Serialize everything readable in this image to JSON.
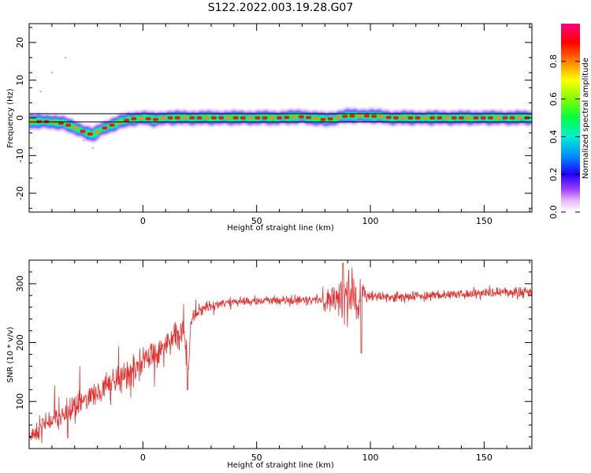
{
  "figure": {
    "title": "S122.2022.003.19.28.G07"
  },
  "chart_data": [
    {
      "type": "heatmap",
      "name": "spectrogram",
      "xlabel": "Height of straight line (km)",
      "ylabel": "Frequency (Hz)",
      "xlim": [
        -50,
        171
      ],
      "ylim": [
        -25,
        25
      ],
      "xticks": [
        0,
        50,
        100,
        150
      ],
      "yticks": [
        -20,
        -10,
        0,
        10,
        20
      ],
      "xtick_labels": [
        "0",
        "50",
        "100",
        "150"
      ],
      "ytick_labels": [
        "-20",
        "-10",
        "0",
        "10",
        "20"
      ],
      "colorbar": {
        "label": "Normalized spectral amplitude",
        "range": [
          0,
          1
        ],
        "ticks": [
          0.0,
          0.2,
          0.4,
          0.6,
          0.8
        ],
        "tick_labels": [
          "0.0",
          "0.2",
          "0.4",
          "0.6",
          "0.8"
        ]
      },
      "ridge_frequency": {
        "x": [
          -50,
          -40,
          -35,
          -30,
          -25,
          -22,
          -18,
          -12,
          -5,
          0,
          5,
          10,
          20,
          50,
          60,
          70,
          80,
          90,
          100,
          110,
          120,
          150,
          171
        ],
        "y": [
          -1,
          -1,
          -1.5,
          -2.5,
          -4,
          -4.5,
          -3,
          -1.5,
          -0.3,
          0,
          -0.5,
          0,
          0,
          0,
          0,
          0.3,
          -0.5,
          0.5,
          0.5,
          0,
          0,
          0,
          0
        ]
      }
    },
    {
      "type": "line",
      "name": "snr",
      "xlabel": "Height of straight line (km)",
      "ylabel": "SNR (10 * v/v)",
      "xlim": [
        -50,
        171
      ],
      "ylim": [
        20,
        340
      ],
      "xticks": [
        0,
        50,
        100,
        150
      ],
      "yticks": [
        100,
        200,
        300
      ],
      "xtick_labels": [
        "0",
        "50",
        "100",
        "150"
      ],
      "ytick_labels": [
        "100",
        "200",
        "300"
      ],
      "color": "#e53030",
      "trend": {
        "x": [
          -50,
          -45,
          -40,
          -35,
          -30,
          -25,
          -20,
          -15,
          -10,
          -5,
          0,
          5,
          10,
          15,
          18,
          19,
          20,
          21,
          22,
          25,
          30,
          35,
          40,
          50,
          60,
          70,
          80,
          85,
          90,
          95,
          100,
          110,
          120,
          130,
          140,
          150,
          160,
          171
        ],
        "y": [
          40,
          55,
          70,
          75,
          90,
          105,
          115,
          125,
          140,
          150,
          165,
          180,
          195,
          210,
          220,
          190,
          150,
          230,
          240,
          255,
          262,
          268,
          270,
          270,
          272,
          272,
          275,
          278,
          275,
          275,
          278,
          278,
          278,
          280,
          282,
          284,
          285,
          285
        ]
      },
      "features": [
        {
          "x": 19.5,
          "y": 120,
          "note": "drop"
        },
        {
          "x": 88,
          "y": 335,
          "note": "oscillation"
        },
        {
          "x": 96,
          "y": 182,
          "note": "oscillation"
        }
      ]
    }
  ]
}
